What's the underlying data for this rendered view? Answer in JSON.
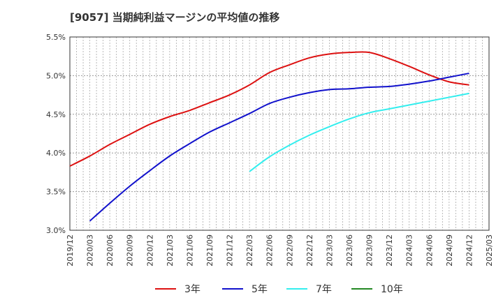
{
  "chart_data": {
    "type": "line",
    "title": "[9057]  当期純利益マージンの平均値の推移",
    "xlabel": "",
    "ylabel": "",
    "ylim": [
      3.0,
      5.5
    ],
    "xlim": [
      "2019-12",
      "2025-03"
    ],
    "grid": true,
    "legend_position": "bottom",
    "x_ticks": [
      "2019/12",
      "2020/03",
      "2020/06",
      "2020/09",
      "2020/12",
      "2021/03",
      "2021/06",
      "2021/09",
      "2021/12",
      "2022/03",
      "2022/06",
      "2022/09",
      "2022/12",
      "2023/03",
      "2023/06",
      "2023/09",
      "2023/12",
      "2024/03",
      "2024/06",
      "2024/09",
      "2024/12",
      "2025/03"
    ],
    "y_ticks": [
      "3.0%",
      "3.5%",
      "4.0%",
      "4.5%",
      "5.0%",
      "5.5%"
    ],
    "y_tick_values": [
      3.0,
      3.5,
      4.0,
      4.5,
      5.0,
      5.5
    ],
    "series": [
      {
        "name": "3年",
        "color": "#dd1111",
        "points": [
          [
            "2019-12",
            3.83
          ],
          [
            "2020-03",
            3.96
          ],
          [
            "2020-06",
            4.11
          ],
          [
            "2020-09",
            4.24
          ],
          [
            "2020-12",
            4.37
          ],
          [
            "2021-03",
            4.47
          ],
          [
            "2021-06",
            4.55
          ],
          [
            "2021-09",
            4.65
          ],
          [
            "2021-12",
            4.75
          ],
          [
            "2022-03",
            4.88
          ],
          [
            "2022-06",
            5.04
          ],
          [
            "2022-09",
            5.14
          ],
          [
            "2022-12",
            5.23
          ],
          [
            "2023-03",
            5.28
          ],
          [
            "2023-06",
            5.3
          ],
          [
            "2023-09",
            5.3
          ],
          [
            "2023-12",
            5.22
          ],
          [
            "2024-03",
            5.12
          ],
          [
            "2024-06",
            5.01
          ],
          [
            "2024-09",
            4.92
          ],
          [
            "2024-12",
            4.88
          ]
        ]
      },
      {
        "name": "5年",
        "color": "#1111cc",
        "points": [
          [
            "2020-03",
            3.12
          ],
          [
            "2020-06",
            3.35
          ],
          [
            "2020-09",
            3.57
          ],
          [
            "2020-12",
            3.77
          ],
          [
            "2021-03",
            3.96
          ],
          [
            "2021-06",
            4.12
          ],
          [
            "2021-09",
            4.27
          ],
          [
            "2021-12",
            4.39
          ],
          [
            "2022-03",
            4.51
          ],
          [
            "2022-06",
            4.64
          ],
          [
            "2022-09",
            4.72
          ],
          [
            "2022-12",
            4.78
          ],
          [
            "2023-03",
            4.82
          ],
          [
            "2023-06",
            4.83
          ],
          [
            "2023-09",
            4.85
          ],
          [
            "2023-12",
            4.86
          ],
          [
            "2024-03",
            4.89
          ],
          [
            "2024-06",
            4.93
          ],
          [
            "2024-09",
            4.98
          ],
          [
            "2024-12",
            5.03
          ]
        ]
      },
      {
        "name": "7年",
        "color": "#33eeee",
        "points": [
          [
            "2022-03",
            3.76
          ],
          [
            "2022-06",
            3.95
          ],
          [
            "2022-09",
            4.1
          ],
          [
            "2022-12",
            4.23
          ],
          [
            "2023-03",
            4.34
          ],
          [
            "2023-06",
            4.44
          ],
          [
            "2023-09",
            4.52
          ],
          [
            "2023-12",
            4.57
          ],
          [
            "2024-03",
            4.62
          ],
          [
            "2024-06",
            4.67
          ],
          [
            "2024-09",
            4.72
          ],
          [
            "2024-12",
            4.77
          ]
        ]
      },
      {
        "name": "10年",
        "color": "#228822",
        "points": []
      }
    ]
  }
}
